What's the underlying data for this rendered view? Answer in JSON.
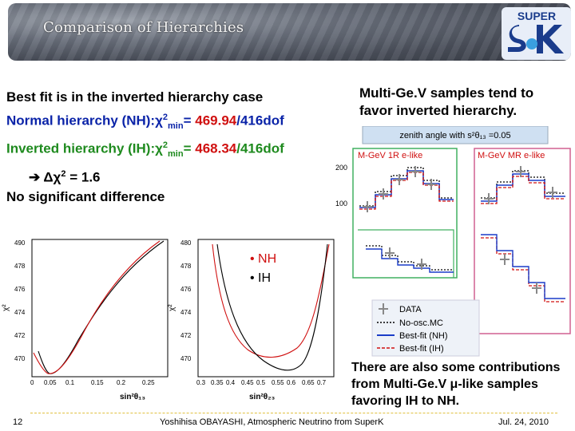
{
  "header": {
    "title": "Comparison of Hierarchies",
    "logo_text": "SUPER"
  },
  "main": {
    "line1": "Best fit is in the inverted hierarchy case",
    "nh_label": "Normal hierarchy (NH):",
    "nh_chi": "χ",
    "nh_sup": "2",
    "nh_sub": "min",
    "nh_eq": "= ",
    "nh_val": "469.94",
    "nh_dof": "/416dof",
    "ih_label": "Inverted hierarchy (IH):",
    "ih_chi": "χ",
    "ih_sup": "2",
    "ih_sub": "min",
    "ih_eq": "= ",
    "ih_val": "468.34",
    "ih_dof": "/416dof",
    "arrow": "➔",
    "delta": " Δχ",
    "delta_sup": "2",
    "delta_val": " = 1.6",
    "conclusion": "No significant difference"
  },
  "right_note": "Multi-Ge.V samples tend to favor inverted hierarchy.",
  "bottom_note": "There are also some contributions from Multi-Ge.V μ-like samples favoring IH to NH.",
  "legend": {
    "nh": "• NH",
    "ih": "• IH"
  },
  "plot1": {
    "ylabel": "χ²",
    "xlabel": "sin²θ₁₃",
    "yticks": [
      "490",
      "478",
      "476",
      "474",
      "472",
      "470"
    ],
    "xticks": [
      "0",
      "0.05",
      "0.1",
      "0.15",
      "0.2",
      "0.25"
    ]
  },
  "plot2": {
    "ylabel": "χ²",
    "xlabel": "sin²θ₂₃",
    "yticks": [
      "480",
      "478",
      "476",
      "474",
      "472",
      "470"
    ],
    "xticks": [
      "0.3",
      "0.35",
      "0.4",
      "0.45",
      "0.5",
      "0.55",
      "0.6",
      "0.65",
      "0.7"
    ]
  },
  "mc": {
    "header": "zenith angle with s²θ₁₃ =0.05",
    "left_title": "M-GeV 1R e-like",
    "right_title": "M-GeV MR e-like",
    "y200": "200",
    "y100": "100",
    "legend": [
      "DATA",
      "No-osc.MC",
      "Best-fit (NH)",
      "Best-fit (IH)"
    ]
  },
  "footer": {
    "page": "12",
    "center": "Yoshihisa OBAYASHI, Atmospheric Neutrino from SuperK",
    "date": "Jul. 24, 2010"
  },
  "colors": {
    "nh_blue": "#0a23a8",
    "ih_green": "#1e8a1e",
    "value_red": "#d01010"
  }
}
